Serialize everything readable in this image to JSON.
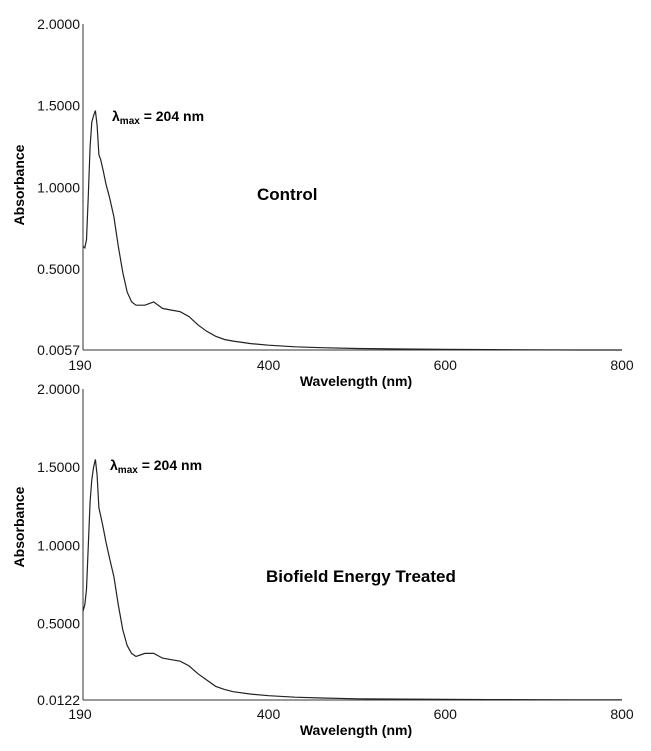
{
  "chart_data": [
    {
      "type": "line",
      "xlabel": "Wavelength (nm)",
      "ylabel": "Absorbance",
      "panel_label": "Control",
      "annotation": {
        "prefix": "λ",
        "sub": "max",
        "suffix": " = 204 nm"
      },
      "xlim": [
        190,
        800
      ],
      "ylim": [
        0.0057,
        2.0
      ],
      "x_ticks": [
        "190",
        "400",
        "600",
        "800"
      ],
      "y_ticks": [
        "0.0057",
        "0.5000",
        "1.0000",
        "1.5000",
        "2.0000"
      ],
      "series": [
        {
          "x": [
            190,
            192,
            194,
            196,
            198,
            200,
            202,
            204,
            206,
            208,
            210,
            213,
            216,
            220,
            225,
            230,
            235,
            240,
            245,
            250,
            260,
            270,
            280,
            290,
            300,
            310,
            320,
            330,
            340,
            350,
            360,
            380,
            400,
            430,
            460,
            500,
            550,
            600,
            650,
            700,
            750,
            800
          ],
          "y": [
            0.64,
            0.63,
            0.68,
            0.95,
            1.25,
            1.4,
            1.44,
            1.47,
            1.38,
            1.2,
            1.17,
            1.1,
            1.02,
            0.94,
            0.82,
            0.64,
            0.48,
            0.36,
            0.3,
            0.28,
            0.28,
            0.3,
            0.26,
            0.25,
            0.24,
            0.21,
            0.16,
            0.12,
            0.09,
            0.07,
            0.06,
            0.045,
            0.035,
            0.025,
            0.02,
            0.015,
            0.012,
            0.01,
            0.008,
            0.007,
            0.006,
            0.006
          ]
        }
      ]
    },
    {
      "type": "line",
      "xlabel": "Wavelength (nm)",
      "ylabel": "Absorbance",
      "panel_label": "Biofield Energy Treated",
      "annotation": {
        "prefix": "λ",
        "sub": "max",
        "suffix": " = 204 nm"
      },
      "xlim": [
        190,
        800
      ],
      "ylim": [
        0.0122,
        2.0
      ],
      "x_ticks": [
        "190",
        "400",
        "600",
        "800"
      ],
      "y_ticks": [
        "0.0122",
        "0.5000",
        "1.0000",
        "1.5000",
        "2.0000"
      ],
      "series": [
        {
          "x": [
            190,
            192,
            194,
            196,
            198,
            200,
            202,
            204,
            206,
            208,
            210,
            213,
            216,
            220,
            225,
            230,
            235,
            240,
            245,
            250,
            260,
            270,
            280,
            290,
            300,
            310,
            320,
            330,
            340,
            350,
            360,
            380,
            400,
            430,
            460,
            500,
            550,
            600,
            650,
            700,
            750,
            800
          ],
          "y": [
            0.58,
            0.62,
            0.72,
            1.0,
            1.28,
            1.42,
            1.5,
            1.55,
            1.45,
            1.24,
            1.19,
            1.11,
            1.02,
            0.92,
            0.8,
            0.62,
            0.46,
            0.36,
            0.31,
            0.29,
            0.31,
            0.31,
            0.28,
            0.27,
            0.26,
            0.23,
            0.18,
            0.14,
            0.1,
            0.08,
            0.065,
            0.05,
            0.04,
            0.03,
            0.025,
            0.02,
            0.018,
            0.016,
            0.015,
            0.014,
            0.013,
            0.013
          ]
        }
      ]
    }
  ]
}
